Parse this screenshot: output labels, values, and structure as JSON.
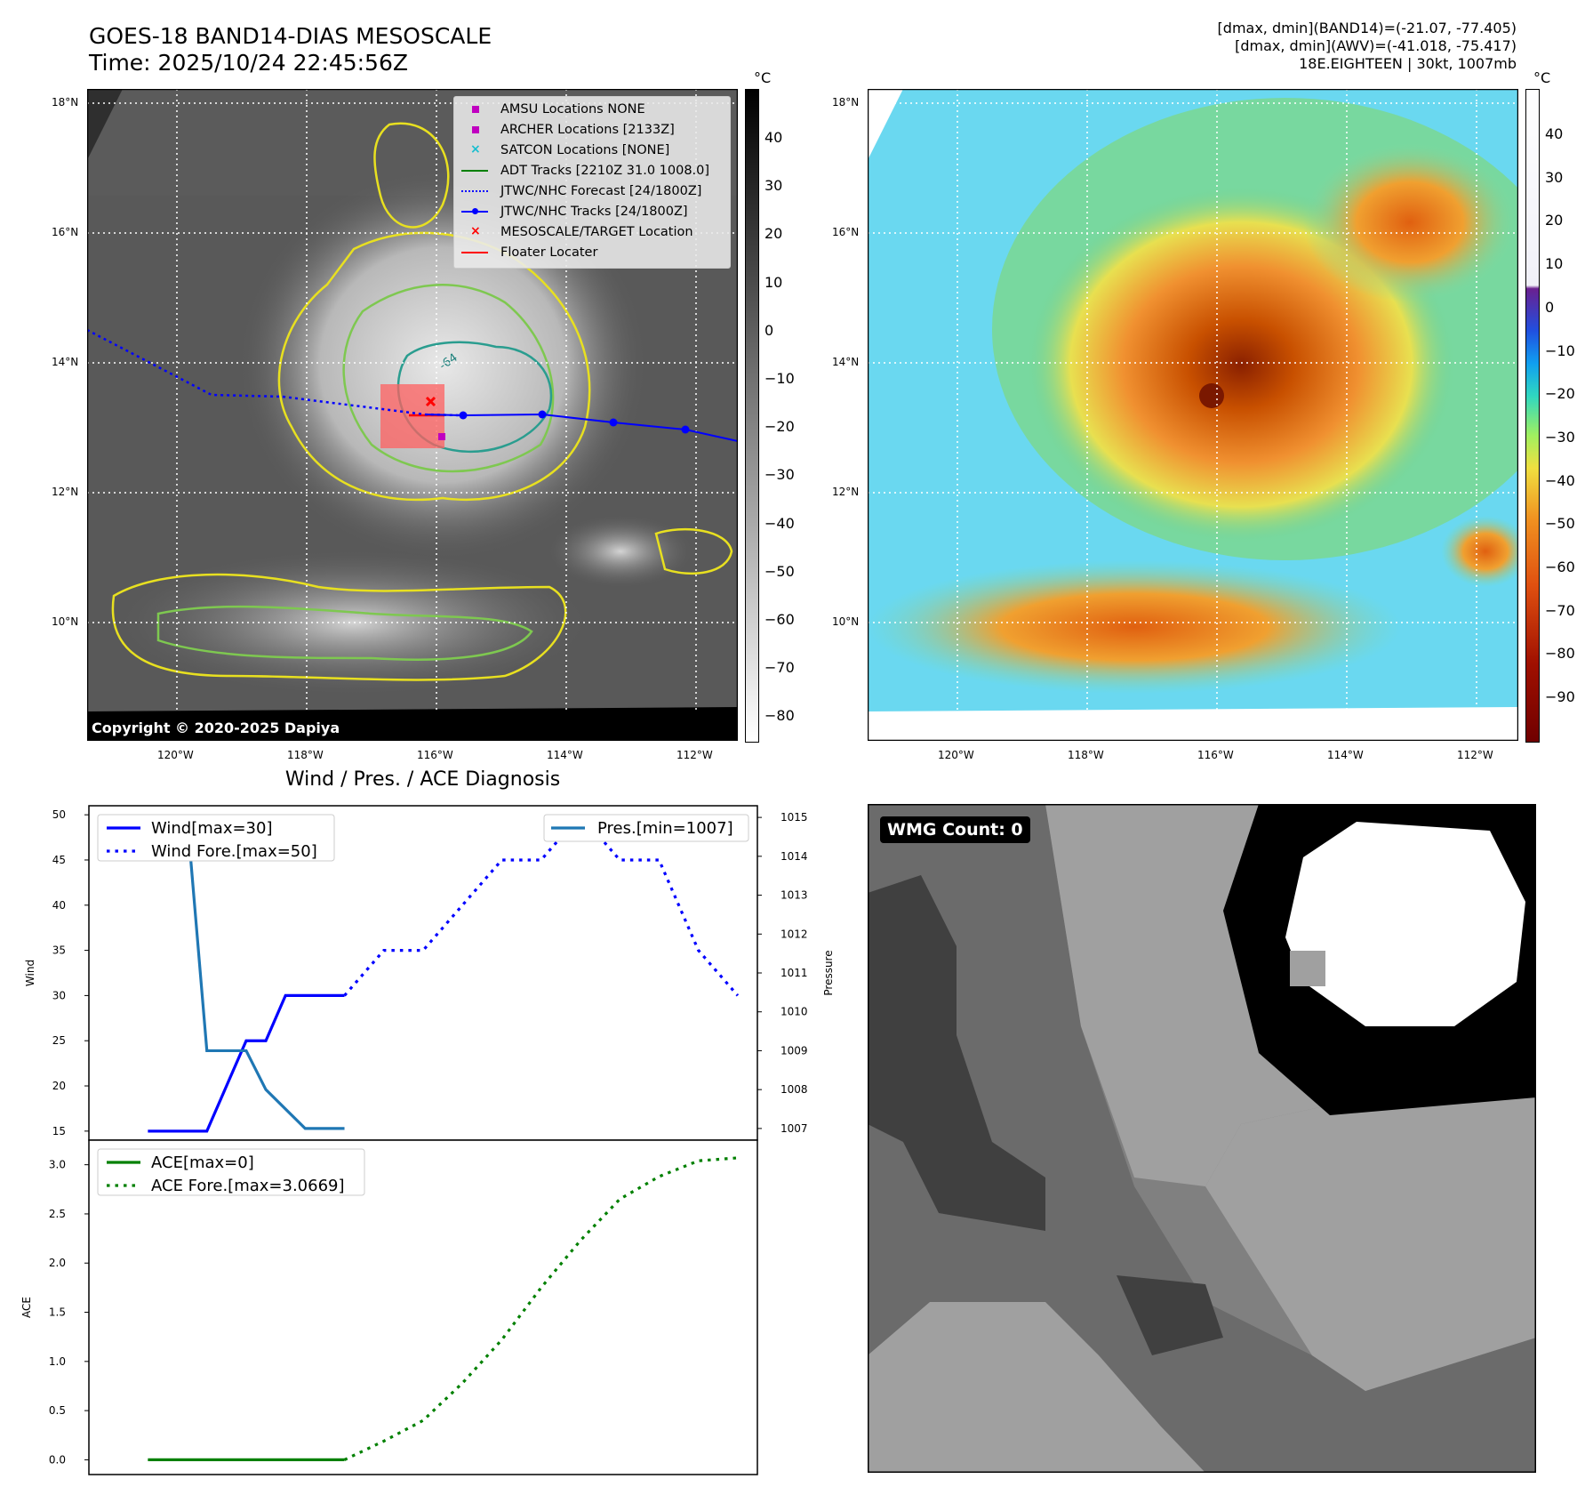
{
  "header": {
    "title_line1": "GOES-18 BAND14-DIAS MESOSCALE",
    "title_line2": "Time: 2025/10/24 22:45:56Z",
    "info_line1": "[dmax, dmin](BAND14)=(-21.07, -77.405)",
    "info_line2": "[dmax, dmin](AWV)=(-41.018, -75.417)",
    "info_line3": "18E.EIGHTEEN | 30kt, 1007mb"
  },
  "map_axes": {
    "lat_labels": [
      "18°N",
      "16°N",
      "14°N",
      "12°N",
      "10°N"
    ],
    "lon_labels": [
      "120°W",
      "118°W",
      "116°W",
      "114°W",
      "112°W"
    ]
  },
  "ir_panel": {
    "copyright": "Copyright © 2020-2025 Dapiya",
    "colorbar_unit": "°C",
    "colorbar_ticks": [
      "40",
      "30",
      "20",
      "10",
      "0",
      "−10",
      "−20",
      "−30",
      "−40",
      "−50",
      "−60",
      "−70",
      "−80"
    ],
    "contour_label": "-64",
    "legend": [
      {
        "label": "AMSU Locations NONE",
        "symbol": "square",
        "color": "#c000c0"
      },
      {
        "label": "ARCHER Locations [2133Z]",
        "symbol": "square",
        "color": "#c000c0"
      },
      {
        "label": "SATCON Locations [NONE]",
        "symbol": "x",
        "color": "#17becf"
      },
      {
        "label": "ADT Tracks [2210Z 31.0 1008.0]",
        "symbol": "line",
        "color": "#008000"
      },
      {
        "label": "JTWC/NHC Forecast [24/1800Z]",
        "symbol": "dotted",
        "color": "#0000ff"
      },
      {
        "label": "JTWC/NHC Tracks [24/1800Z]",
        "symbol": "line-dot",
        "color": "#0000ff"
      },
      {
        "label": "MESOSCALE/TARGET Location",
        "symbol": "x",
        "color": "#ff0000"
      },
      {
        "label": "Floater Locater",
        "symbol": "line",
        "color": "#ff0000"
      }
    ]
  },
  "wv_panel": {
    "colorbar_unit": "°C",
    "colorbar_ticks": [
      "40",
      "30",
      "20",
      "10",
      "0",
      "−10",
      "−20",
      "−30",
      "−40",
      "−50",
      "−60",
      "−70",
      "−80",
      "−90"
    ]
  },
  "wmg_panel": {
    "badge": "WMG Count: 0"
  },
  "chart_data": [
    {
      "type": "line",
      "title": "Wind / Pres. / ACE Diagnosis",
      "ylabel": "Wind",
      "ylabel_right": "Pressure",
      "x": [
        0,
        1,
        2,
        3,
        4,
        5,
        6,
        7,
        8,
        9,
        10,
        11,
        12,
        13,
        14,
        15
      ],
      "ylim": [
        14,
        51
      ],
      "ylim_right": [
        1006.7,
        1015.3
      ],
      "yticks": [
        "50",
        "45",
        "40",
        "35",
        "30",
        "25",
        "20",
        "15"
      ],
      "yticks_right": [
        "1015",
        "1014",
        "1013",
        "1012",
        "1011",
        "1010",
        "1009",
        "1008",
        "1007"
      ],
      "series": [
        {
          "name": "Wind[max=30]",
          "axis": "left",
          "style": "solid",
          "color": "#0000ff",
          "x": [
            0,
            1,
            1.5,
            2,
            2.5,
            3,
            3.5,
            4,
            5
          ],
          "values": [
            15,
            15,
            15,
            20,
            25,
            25,
            30,
            30,
            30
          ]
        },
        {
          "name": "Wind Fore.[max=50]",
          "axis": "left",
          "style": "dotted",
          "color": "#0000ff",
          "x": [
            5,
            6,
            7,
            8,
            9,
            10,
            11,
            12,
            13,
            14,
            15
          ],
          "values": [
            30,
            35,
            35,
            40,
            45,
            45,
            50,
            45,
            45,
            35,
            30
          ]
        },
        {
          "name": "Pres.[min=1007]",
          "axis": "right",
          "style": "solid",
          "color": "#1f77b4",
          "x": [
            0,
            1,
            1.5,
            2,
            2.5,
            3,
            4,
            5
          ],
          "values": [
            1015,
            1015,
            1009,
            1009,
            1009,
            1008,
            1007,
            1007
          ]
        }
      ]
    },
    {
      "type": "line",
      "ylabel": "ACE",
      "x": [
        0,
        1,
        2,
        3,
        4,
        5,
        6,
        7,
        8,
        9,
        10,
        11,
        12,
        13,
        14,
        15
      ],
      "ylim": [
        -0.15,
        3.25
      ],
      "yticks": [
        "3.0",
        "2.5",
        "2.0",
        "1.5",
        "1.0",
        "0.5",
        "0.0"
      ],
      "series": [
        {
          "name": "ACE[max=0]",
          "style": "solid",
          "color": "#008000",
          "x": [
            0,
            1,
            2,
            3,
            4,
            5
          ],
          "values": [
            0,
            0,
            0,
            0,
            0,
            0
          ]
        },
        {
          "name": "ACE Fore.[max=3.0669]",
          "style": "dotted",
          "color": "#008000",
          "x": [
            5,
            6,
            7,
            8,
            9,
            10,
            11,
            12,
            13,
            14,
            15
          ],
          "values": [
            0,
            0.19,
            0.4,
            0.78,
            1.22,
            1.75,
            2.23,
            2.65,
            2.88,
            3.04,
            3.07
          ]
        }
      ]
    }
  ]
}
